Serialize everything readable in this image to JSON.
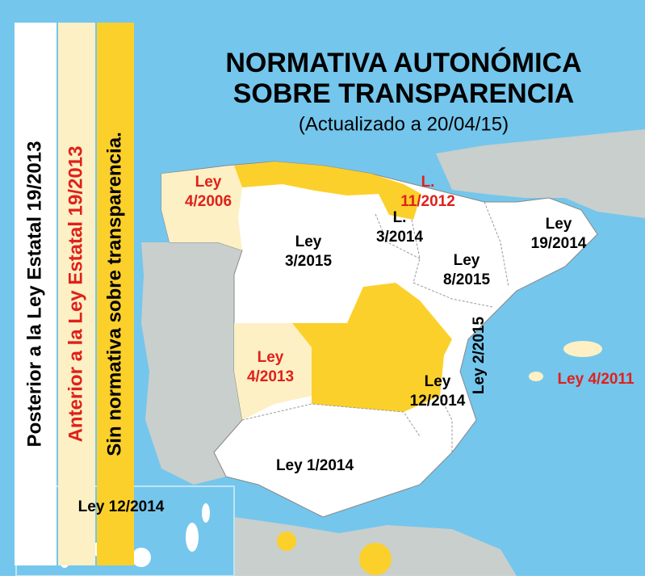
{
  "title": [
    "NORMATIVA AUTONÓMICA",
    "SOBRE TRANSPARENCIA"
  ],
  "subtitle": "(Actualizado a 20/04/15)",
  "legend": [
    {
      "label": "Posterior a la Ley Estatal 19/2013",
      "color": "#ffffff",
      "text_color": "#000000"
    },
    {
      "label": "Anterior a la Ley Estatal 19/2013",
      "color": "#fcf0c4",
      "text_color": "#e0201b"
    },
    {
      "label": "Sin normativa sobre transparencia.",
      "color": "#fcd02b",
      "text_color": "#000000"
    }
  ],
  "regions": [
    {
      "lines": [
        "Ley",
        "4/2006"
      ],
      "color": "#e0201b"
    },
    {
      "lines": [
        "L.",
        "11/2012"
      ],
      "color": "#e0201b"
    },
    {
      "lines": [
        "L.",
        "3/2014"
      ],
      "color": "#000000"
    },
    {
      "lines": [
        "Ley",
        "3/2015"
      ],
      "color": "#000000"
    },
    {
      "lines": [
        "Ley",
        "19/2014"
      ],
      "color": "#000000"
    },
    {
      "lines": [
        "Ley",
        "8/2015"
      ],
      "color": "#000000"
    },
    {
      "lines": [
        "Ley 2/2015"
      ],
      "color": "#000000"
    },
    {
      "lines": [
        "Ley",
        "4/2013"
      ],
      "color": "#e0201b"
    },
    {
      "lines": [
        "Ley",
        "12/2014"
      ],
      "color": "#000000"
    },
    {
      "lines": [
        "Ley 1/2014"
      ],
      "color": "#000000"
    },
    {
      "lines": [
        "Ley 4/2011"
      ],
      "color": "#e0201b"
    },
    {
      "lines": [
        "Ley 12/2014"
      ],
      "color": "#000000"
    }
  ]
}
